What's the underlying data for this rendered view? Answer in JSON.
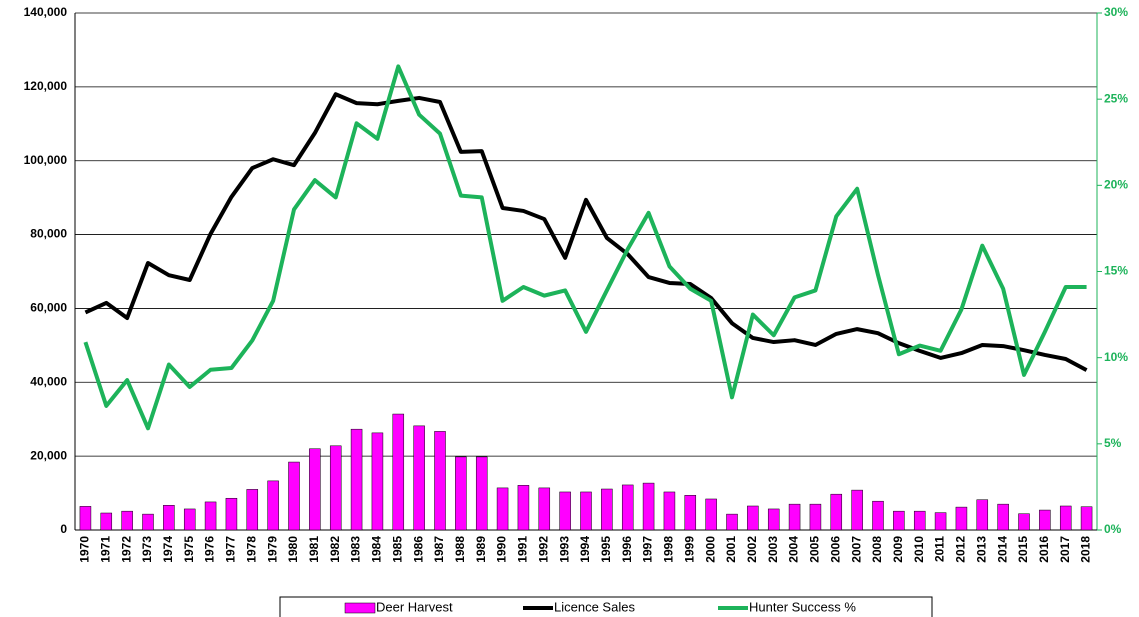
{
  "chart_data": {
    "type": "combo",
    "categories": [
      "1970",
      "1971",
      "1972",
      "1973",
      "1974",
      "1975",
      "1976",
      "1977",
      "1978",
      "1979",
      "1980",
      "1981",
      "1982",
      "1983",
      "1984",
      "1985",
      "1986",
      "1987",
      "1988",
      "1989",
      "1990",
      "1991",
      "1992",
      "1993",
      "1994",
      "1995",
      "1996",
      "1997",
      "1998",
      "1999",
      "2000",
      "2001",
      "2002",
      "2003",
      "2004",
      "2005",
      "2006",
      "2007",
      "2008",
      "2009",
      "2010",
      "2011",
      "2012",
      "2013",
      "2014",
      "2015",
      "2016",
      "2017",
      "2018"
    ],
    "series": [
      {
        "name": "Deer Harvest",
        "type": "bar",
        "color": "#ff00ff",
        "values": [
          6400,
          4600,
          5100,
          4300,
          6700,
          5700,
          7600,
          8600,
          11000,
          13300,
          18400,
          22000,
          22800,
          27300,
          26300,
          31400,
          28200,
          26700,
          19800,
          19800,
          11400,
          12100,
          11400,
          10300,
          10300,
          11100,
          12200,
          12700,
          10300,
          9400,
          8400,
          4300,
          6500,
          5700,
          7000,
          7000,
          9700,
          10800,
          7800,
          5100,
          5100,
          4700,
          6200,
          8200,
          7000,
          4400,
          5400,
          6500,
          6300
        ]
      },
      {
        "name": "Licence Sales",
        "type": "line",
        "color": "#000000",
        "values": [
          58900,
          61500,
          57400,
          72300,
          69000,
          67700,
          80200,
          90200,
          98000,
          100400,
          98800,
          107500,
          118000,
          115600,
          115300,
          116200,
          117000,
          115900,
          102400,
          102600,
          87200,
          86400,
          84200,
          73700,
          89400,
          79100,
          74700,
          68500,
          66900,
          66600,
          62800,
          56000,
          52000,
          50900,
          51400,
          50100,
          53100,
          54400,
          53300,
          50600,
          48500,
          46600,
          47900,
          50100,
          49800,
          48700,
          47400,
          46300,
          43300
        ]
      },
      {
        "name": "Hunter Success %",
        "type": "line",
        "axis": "y2",
        "color": "#1db35a",
        "values": [
          10.9,
          7.2,
          8.7,
          5.9,
          9.6,
          8.3,
          9.3,
          9.4,
          11.0,
          13.3,
          18.6,
          20.3,
          19.3,
          23.6,
          22.7,
          26.9,
          24.1,
          23.0,
          19.4,
          19.3,
          13.3,
          14.1,
          13.6,
          13.9,
          11.5,
          13.9,
          16.3,
          18.4,
          15.3,
          14.0,
          13.3,
          7.7,
          12.5,
          11.3,
          13.5,
          13.9,
          18.2,
          19.8,
          14.8,
          10.2,
          10.7,
          10.4,
          12.8,
          16.5,
          14.0,
          9.0,
          11.5,
          14.1,
          14.1
        ]
      }
    ],
    "ylim": [
      0,
      140000
    ],
    "yticks": [
      0,
      {
        "value": 20000,
        "label": "20,000"
      },
      {
        "value": 40000,
        "label": "40,000"
      },
      {
        "value": 60000,
        "label": "60,000"
      },
      {
        "value": 80000,
        "label": "80,000"
      },
      {
        "value": 100000,
        "label": "100,000"
      },
      {
        "value": 120000,
        "label": "120,000"
      },
      {
        "value": 140000,
        "label": "140,000"
      }
    ],
    "y2lim": [
      0,
      30
    ],
    "y2ticks": [
      {
        "value": 0,
        "label": "0%"
      },
      {
        "value": 5,
        "label": "5%"
      },
      {
        "value": 10,
        "label": "10%"
      },
      {
        "value": 15,
        "label": "15%"
      },
      {
        "value": 20,
        "label": "20%"
      },
      {
        "value": 25,
        "label": "25%"
      },
      {
        "value": 30,
        "label": "30%"
      }
    ],
    "y2color": "#1db35a",
    "grid": true,
    "legend": "bottom"
  }
}
